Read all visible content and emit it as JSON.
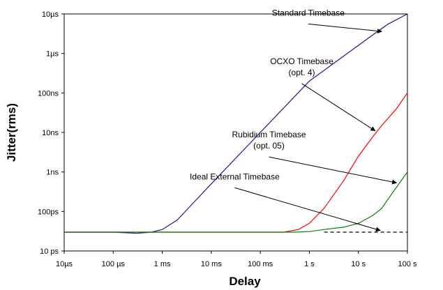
{
  "chart_data": {
    "type": "line",
    "xlabel": "Delay",
    "ylabel": "Jitter(rms)",
    "x_scale": "log",
    "y_scale": "log",
    "xlim_seconds": [
      1e-05,
      100
    ],
    "ylim_seconds": [
      1e-11,
      1e-05
    ],
    "x_ticks": [
      {
        "value": 1e-05,
        "label": "10µs"
      },
      {
        "value": 0.0001,
        "label": "100 µs"
      },
      {
        "value": 0.001,
        "label": "1 ms"
      },
      {
        "value": 0.01,
        "label": "10 ms"
      },
      {
        "value": 0.1,
        "label": "100 ms"
      },
      {
        "value": 1,
        "label": "1 s"
      },
      {
        "value": 10,
        "label": "10 s"
      },
      {
        "value": 100,
        "label": "100 s"
      }
    ],
    "y_ticks": [
      {
        "value": 1e-05,
        "label": "10µs"
      },
      {
        "value": 1e-06,
        "label": "1µs"
      },
      {
        "value": 1e-07,
        "label": "100ns"
      },
      {
        "value": 1e-08,
        "label": "10ns"
      },
      {
        "value": 1e-09,
        "label": "1ns"
      },
      {
        "value": 1e-10,
        "label": "100ps"
      },
      {
        "value": 1e-11,
        "label": "10 ps"
      }
    ],
    "grid": false,
    "series": [
      {
        "color": "#1a1a8c",
        "dash": false,
        "points": [
          [
            1e-05,
            3e-11
          ],
          [
            0.0001,
            3e-11
          ],
          [
            0.0003,
            2.8e-11
          ],
          [
            0.0006,
            3e-11
          ],
          [
            0.001,
            3.5e-11
          ],
          [
            0.002,
            6e-11
          ],
          [
            0.004,
            1.5e-10
          ],
          [
            0.01,
            5e-10
          ],
          [
            0.1,
            1e-08
          ],
          [
            1,
            2e-07
          ],
          [
            10,
            1.6e-06
          ],
          [
            20,
            3e-06
          ],
          [
            40,
            5.5e-06
          ],
          [
            100,
            1e-05
          ]
        ]
      },
      {
        "color": "#ff0000",
        "dash": false,
        "points": [
          [
            1e-05,
            3e-11
          ],
          [
            0.0001,
            3e-11
          ],
          [
            0.001,
            3e-11
          ],
          [
            0.01,
            3e-11
          ],
          [
            0.1,
            3e-11
          ],
          [
            0.3,
            3e-11
          ],
          [
            0.6,
            3.5e-11
          ],
          [
            1,
            5e-11
          ],
          [
            2,
            1.2e-10
          ],
          [
            5,
            6e-10
          ],
          [
            10,
            2.5e-09
          ],
          [
            20,
            8e-09
          ],
          [
            30,
            1.5e-08
          ],
          [
            60,
            4e-08
          ],
          [
            100,
            1e-07
          ]
        ]
      },
      {
        "color": "#008000",
        "dash": false,
        "points": [
          [
            1e-05,
            3e-11
          ],
          [
            0.01,
            3e-11
          ],
          [
            0.1,
            3e-11
          ],
          [
            0.5,
            3e-11
          ],
          [
            1,
            3.1e-11
          ],
          [
            2,
            3.5e-11
          ],
          [
            5,
            4e-11
          ],
          [
            10,
            5e-11
          ],
          [
            20,
            8e-11
          ],
          [
            30,
            1.2e-10
          ],
          [
            50,
            3e-10
          ],
          [
            100,
            1e-09
          ]
        ]
      },
      {
        "color": "#000000",
        "dash": true,
        "points": [
          [
            2,
            3e-11
          ],
          [
            100,
            3e-11
          ]
        ]
      }
    ],
    "annotations": [
      {
        "lines": [
          "Standard Timebase"
        ],
        "anchor_x": 0.95,
        "anchor_y": 9.1e-06,
        "target_x": 30,
        "target_y": 3.6e-06
      },
      {
        "lines": [
          "OCXO Timebase",
          "(opt. 4)"
        ],
        "anchor_x": 0.7,
        "anchor_y": 5.4e-07,
        "target_x": 22,
        "target_y": 1.1e-08
      },
      {
        "lines": [
          "Rubidium Timebase",
          "(opt. 05)"
        ],
        "anchor_x": 0.15,
        "anchor_y": 7.5e-09,
        "target_x": 60,
        "target_y": 5.3e-10
      },
      {
        "lines": [
          "Ideal External Timebase"
        ],
        "anchor_x": 0.03,
        "anchor_y": 6.5e-10,
        "target_x": 28,
        "target_y": 3.3e-11
      }
    ]
  }
}
